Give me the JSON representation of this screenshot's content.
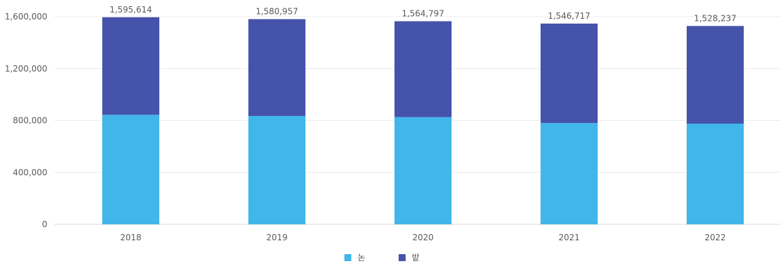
{
  "chart_data": {
    "type": "bar",
    "stacked": true,
    "categories": [
      "2018",
      "2019",
      "2020",
      "2021",
      "2022"
    ],
    "series": [
      {
        "name": "논",
        "color": "#41b6e9",
        "values": [
          844000,
          835000,
          826000,
          780000,
          776000
        ]
      },
      {
        "name": "밭",
        "color": "#4553ab",
        "values": [
          751614,
          745957,
          738797,
          766717,
          752237
        ]
      }
    ],
    "totals": [
      "1,595,614",
      "1,580,957",
      "1,564,797",
      "1,546,717",
      "1,528,237"
    ],
    "total_values": [
      1595614,
      1580957,
      1564797,
      1546717,
      1528237
    ],
    "ylim": [
      0,
      1600000
    ],
    "yticks": [
      0,
      400000,
      800000,
      1200000,
      1600000
    ],
    "ytick_labels": [
      "0",
      "400,000",
      "800,000",
      "1,200,000",
      "1,600,000"
    ],
    "grid": true,
    "legend_position": "bottom-center",
    "title": "",
    "xlabel": "",
    "ylabel": ""
  }
}
